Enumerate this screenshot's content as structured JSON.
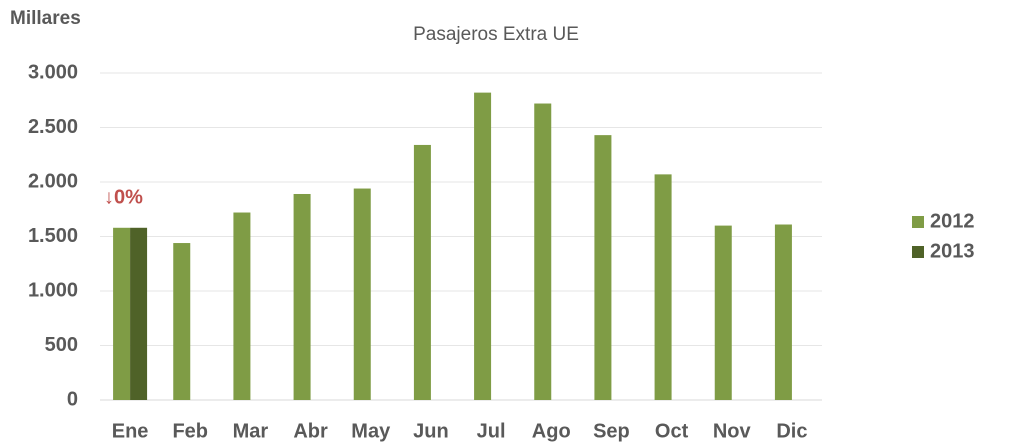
{
  "chart_data": {
    "type": "bar",
    "title": "Pasajeros Extra UE",
    "y_label": "Millares",
    "annotation": "↓0%",
    "categories": [
      "Ene",
      "Feb",
      "Mar",
      "Abr",
      "May",
      "Jun",
      "Jul",
      "Ago",
      "Sep",
      "Oct",
      "Nov",
      "Dic"
    ],
    "series": [
      {
        "name": "2012",
        "color": "#7f9c45",
        "values": [
          1580,
          1440,
          1720,
          1890,
          1940,
          2340,
          2820,
          2720,
          2430,
          2070,
          1600,
          1610
        ]
      },
      {
        "name": "2013",
        "color": "#4f6228",
        "values": [
          1580,
          null,
          null,
          null,
          null,
          null,
          null,
          null,
          null,
          null,
          null,
          null
        ]
      }
    ],
    "ylim": [
      0,
      3000
    ],
    "yticks": [
      0,
      500,
      {
        "value": 1000,
        "label": "1.000"
      },
      {
        "value": 1500,
        "label": "1.500"
      },
      {
        "value": 2000,
        "label": "2.000"
      },
      {
        "value": 2500,
        "label": "2.500"
      },
      {
        "value": 3000,
        "label": "3.000"
      }
    ],
    "grid": true,
    "legend": "right"
  }
}
